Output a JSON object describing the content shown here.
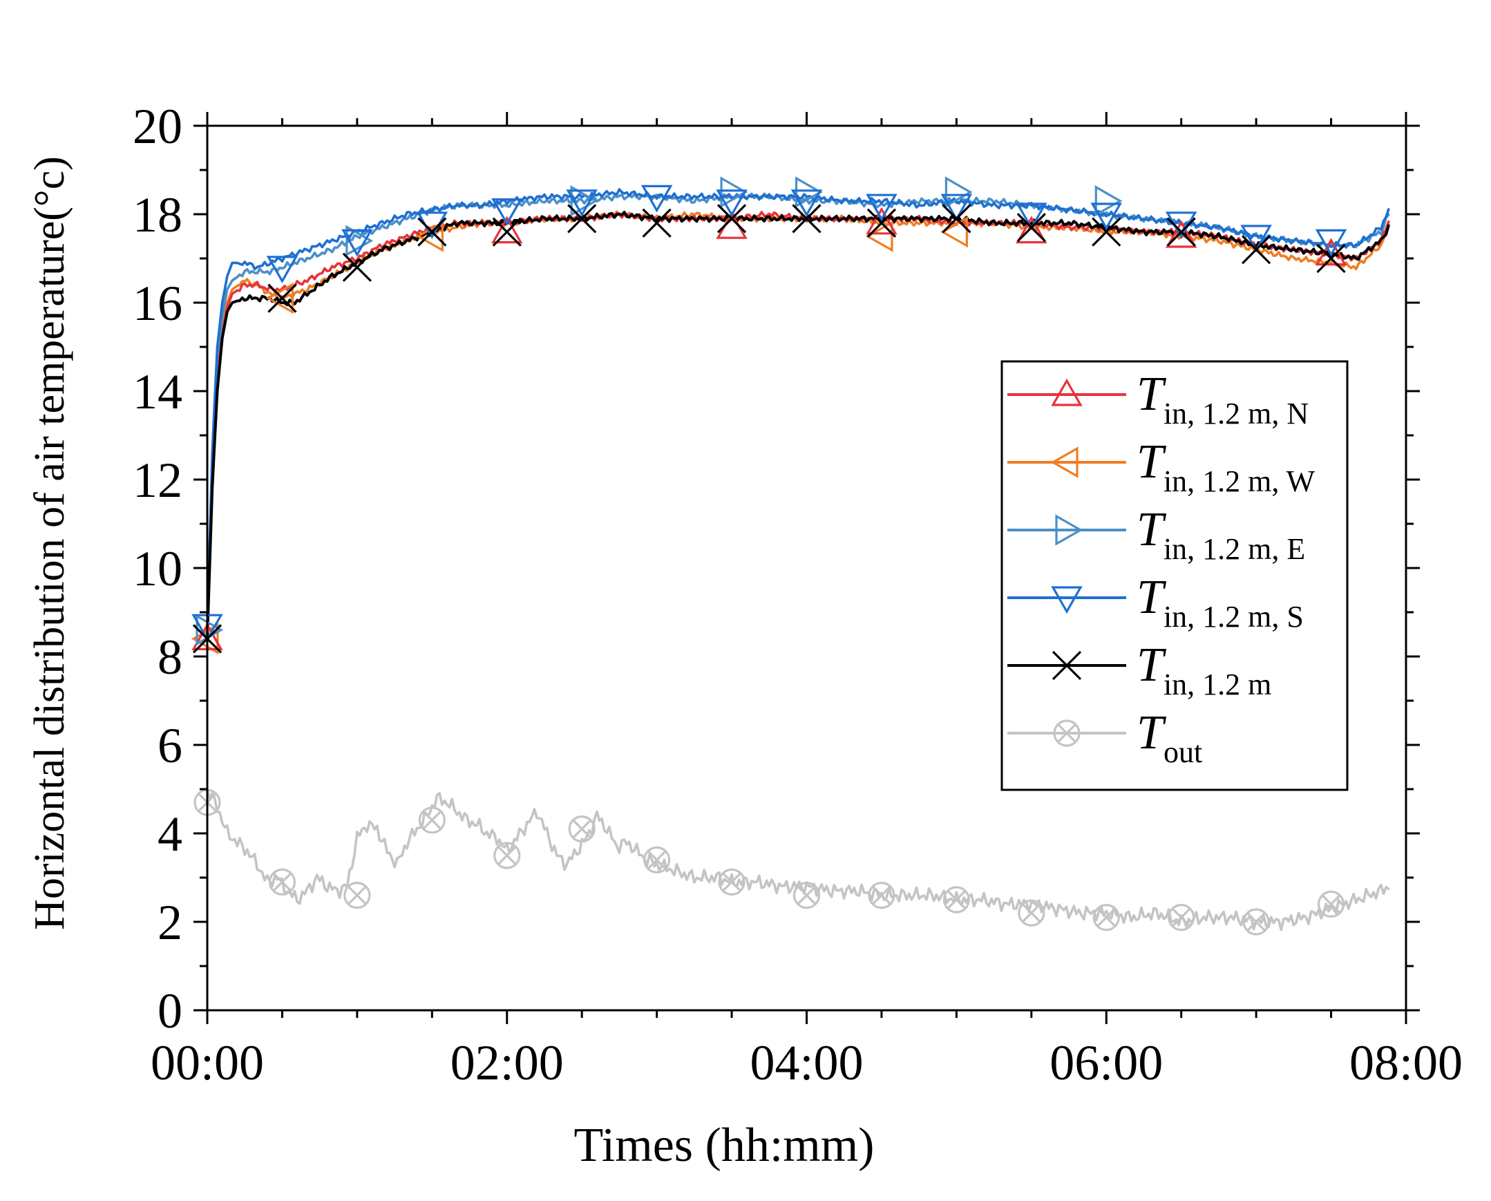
{
  "chart_data": {
    "type": "line",
    "xlabel": "Times (hh:mm)",
    "ylabel": "Horizontal distribution of air temperature(°c)",
    "xlim": [
      0,
      480
    ],
    "ylim": [
      0,
      20
    ],
    "xticks": [
      {
        "value": 0,
        "label": "00:00"
      },
      {
        "value": 120,
        "label": "02:00"
      },
      {
        "value": 240,
        "label": "04:00"
      },
      {
        "value": 360,
        "label": "06:00"
      },
      {
        "value": 480,
        "label": "08:00"
      }
    ],
    "yticks": [
      {
        "value": 0,
        "label": "0"
      },
      {
        "value": 2,
        "label": "2"
      },
      {
        "value": 4,
        "label": "4"
      },
      {
        "value": 6,
        "label": "6"
      },
      {
        "value": 8,
        "label": "8"
      },
      {
        "value": 10,
        "label": "10"
      },
      {
        "value": 12,
        "label": "12"
      },
      {
        "value": 14,
        "label": "14"
      },
      {
        "value": 16,
        "label": "16"
      },
      {
        "value": 18,
        "label": "18"
      },
      {
        "value": 20,
        "label": "20"
      }
    ],
    "minor_x_step": 30,
    "minor_y_step": 1,
    "legend_position": "right-center",
    "series": [
      {
        "name": "T_in, 1.2 m, N",
        "label_main": "T",
        "label_sub": "in, 1.2 m, N",
        "color": "#e8323c",
        "marker": "triangle-up",
        "x": [
          0,
          2,
          4,
          6,
          8,
          10,
          15,
          20,
          25,
          30,
          40,
          50,
          60,
          70,
          80,
          90,
          100,
          110,
          120,
          135,
          150,
          165,
          180,
          195,
          210,
          225,
          240,
          255,
          270,
          285,
          300,
          315,
          330,
          345,
          360,
          375,
          390,
          405,
          420,
          435,
          450,
          460,
          470,
          473
        ],
        "y": [
          8.5,
          12.0,
          14.2,
          15.3,
          15.9,
          16.2,
          16.4,
          16.4,
          16.3,
          16.3,
          16.5,
          16.8,
          17.0,
          17.3,
          17.5,
          17.7,
          17.8,
          17.8,
          17.8,
          17.9,
          17.9,
          18.0,
          17.9,
          17.9,
          17.9,
          18.0,
          17.9,
          17.9,
          17.9,
          17.9,
          17.8,
          17.8,
          17.8,
          17.7,
          17.7,
          17.6,
          17.6,
          17.5,
          17.3,
          17.2,
          17.1,
          17.0,
          17.4,
          17.8
        ],
        "marker_x": [
          0,
          120,
          210,
          270,
          330,
          390,
          450
        ],
        "marker_y": [
          8.4,
          17.6,
          17.7,
          17.8,
          17.6,
          17.5,
          17.1
        ]
      },
      {
        "name": "T_in, 1.2 m, W",
        "label_main": "T",
        "label_sub": "in, 1.2 m, W",
        "color": "#f07d22",
        "marker": "triangle-left",
        "x": [
          0,
          2,
          4,
          6,
          8,
          10,
          15,
          20,
          25,
          30,
          40,
          50,
          60,
          70,
          80,
          90,
          100,
          110,
          120,
          135,
          150,
          165,
          180,
          195,
          210,
          225,
          240,
          255,
          270,
          285,
          300,
          315,
          330,
          345,
          360,
          375,
          390,
          405,
          420,
          435,
          450,
          460,
          470,
          473
        ],
        "y": [
          8.4,
          12.0,
          14.4,
          15.4,
          16.0,
          16.3,
          16.5,
          16.4,
          16.2,
          16.1,
          16.3,
          16.6,
          16.9,
          17.2,
          17.4,
          17.6,
          17.7,
          17.8,
          17.8,
          17.9,
          17.9,
          18.0,
          17.9,
          18.0,
          17.9,
          17.9,
          17.9,
          17.9,
          17.8,
          17.8,
          17.8,
          17.8,
          17.7,
          17.7,
          17.6,
          17.6,
          17.5,
          17.4,
          17.2,
          17.0,
          16.9,
          16.8,
          17.3,
          17.8
        ],
        "marker_x": [
          0,
          30,
          90,
          270,
          300
        ],
        "marker_y": [
          8.4,
          16.1,
          17.5,
          17.5,
          17.6
        ]
      },
      {
        "name": "T_in, 1.2 m, E",
        "label_main": "T",
        "label_sub": "in, 1.2 m, E",
        "color": "#4a90c8",
        "marker": "triangle-right",
        "x": [
          0,
          2,
          4,
          6,
          8,
          10,
          15,
          20,
          25,
          30,
          40,
          50,
          60,
          70,
          80,
          90,
          100,
          110,
          120,
          135,
          150,
          165,
          180,
          195,
          210,
          225,
          240,
          255,
          270,
          285,
          300,
          315,
          330,
          345,
          360,
          375,
          390,
          405,
          420,
          435,
          450,
          460,
          470,
          473
        ],
        "y": [
          8.6,
          12.4,
          14.8,
          15.7,
          16.3,
          16.5,
          16.7,
          16.7,
          16.7,
          16.8,
          17.0,
          17.2,
          17.5,
          17.7,
          17.9,
          18.1,
          18.2,
          18.2,
          18.2,
          18.3,
          18.3,
          18.4,
          18.4,
          18.3,
          18.4,
          18.4,
          18.3,
          18.3,
          18.2,
          18.3,
          18.3,
          18.3,
          18.2,
          18.1,
          18.0,
          17.9,
          17.8,
          17.7,
          17.5,
          17.4,
          17.3,
          17.3,
          17.6,
          18.0
        ],
        "marker_x": [
          0,
          60,
          150,
          210,
          240,
          300,
          360
        ],
        "marker_y": [
          8.6,
          17.4,
          18.3,
          18.5,
          18.5,
          18.5,
          18.3
        ]
      },
      {
        "name": "T_in, 1.2 m, S",
        "label_main": "T",
        "label_sub": "in, 1.2 m, S",
        "color": "#1f6fd1",
        "marker": "triangle-down",
        "x": [
          0,
          2,
          4,
          6,
          8,
          10,
          15,
          20,
          25,
          30,
          40,
          50,
          60,
          70,
          80,
          90,
          100,
          110,
          120,
          135,
          150,
          165,
          180,
          195,
          210,
          225,
          240,
          255,
          270,
          285,
          300,
          315,
          330,
          345,
          360,
          375,
          390,
          405,
          420,
          435,
          450,
          460,
          470,
          473
        ],
        "y": [
          8.7,
          12.6,
          15.0,
          16.0,
          16.6,
          16.9,
          16.9,
          16.8,
          16.9,
          17.0,
          17.2,
          17.4,
          17.6,
          17.8,
          18.0,
          18.1,
          18.2,
          18.2,
          18.3,
          18.4,
          18.4,
          18.5,
          18.4,
          18.4,
          18.4,
          18.4,
          18.4,
          18.3,
          18.3,
          18.2,
          18.3,
          18.2,
          18.2,
          18.1,
          18.0,
          17.9,
          17.8,
          17.7,
          17.5,
          17.4,
          17.3,
          17.3,
          17.7,
          18.1
        ],
        "marker_x": [
          0,
          30,
          60,
          90,
          120,
          150,
          180,
          210,
          240,
          270,
          300,
          330,
          360,
          390,
          420,
          450
        ],
        "marker_y": [
          8.7,
          16.8,
          17.4,
          17.8,
          18.1,
          18.3,
          18.4,
          18.3,
          18.3,
          18.2,
          18.2,
          18.0,
          18.0,
          17.8,
          17.5,
          17.4
        ]
      },
      {
        "name": "T_in, 1.2 m",
        "label_main": "T",
        "label_sub": "in, 1.2 m",
        "color": "#000000",
        "marker": "x",
        "x": [
          0,
          2,
          4,
          6,
          8,
          10,
          15,
          20,
          25,
          30,
          35,
          40,
          50,
          60,
          70,
          80,
          90,
          100,
          110,
          120,
          135,
          150,
          165,
          180,
          195,
          210,
          225,
          240,
          255,
          270,
          285,
          300,
          315,
          330,
          345,
          360,
          375,
          390,
          405,
          420,
          435,
          450,
          460,
          470,
          473
        ],
        "y": [
          8.4,
          11.8,
          14.0,
          15.2,
          15.8,
          16.0,
          16.1,
          16.1,
          16.1,
          16.0,
          16.0,
          16.2,
          16.6,
          16.9,
          17.2,
          17.4,
          17.6,
          17.8,
          17.8,
          17.8,
          17.9,
          17.9,
          18.0,
          17.9,
          17.9,
          17.9,
          17.9,
          17.9,
          17.9,
          17.9,
          17.9,
          17.9,
          17.8,
          17.8,
          17.8,
          17.7,
          17.6,
          17.6,
          17.5,
          17.3,
          17.2,
          17.1,
          17.0,
          17.4,
          17.7
        ],
        "marker_x": [
          0,
          30,
          60,
          90,
          120,
          150,
          180,
          210,
          240,
          270,
          300,
          330,
          360,
          390,
          420,
          450
        ],
        "marker_y": [
          8.4,
          16.1,
          16.8,
          17.6,
          17.6,
          17.9,
          17.8,
          17.9,
          17.9,
          17.8,
          17.9,
          17.7,
          17.6,
          17.6,
          17.2,
          17.0
        ]
      },
      {
        "name": "T_out",
        "label_main": "T",
        "label_sub": "out",
        "color": "#c4c4c4",
        "marker": "circle-x",
        "x": [
          0,
          4,
          8,
          12,
          16,
          20,
          24,
          28,
          32,
          36,
          40,
          44,
          48,
          52,
          56,
          60,
          64,
          68,
          72,
          76,
          80,
          84,
          88,
          92,
          96,
          100,
          104,
          108,
          112,
          116,
          120,
          124,
          128,
          132,
          136,
          140,
          144,
          148,
          152,
          156,
          160,
          164,
          168,
          172,
          176,
          180,
          185,
          190,
          195,
          200,
          205,
          210,
          220,
          230,
          240,
          250,
          260,
          270,
          280,
          290,
          300,
          310,
          320,
          330,
          340,
          350,
          360,
          370,
          380,
          390,
          400,
          410,
          420,
          430,
          440,
          450,
          460,
          470,
          473
        ],
        "y": [
          5.0,
          4.6,
          4.0,
          3.8,
          3.6,
          3.3,
          2.9,
          3.0,
          2.7,
          2.5,
          2.7,
          3.0,
          2.8,
          2.7,
          2.8,
          3.9,
          4.2,
          4.1,
          3.6,
          3.3,
          3.8,
          4.1,
          4.4,
          4.8,
          4.7,
          4.5,
          4.3,
          4.2,
          4.0,
          3.9,
          3.6,
          3.9,
          4.2,
          4.5,
          4.0,
          3.5,
          3.3,
          3.6,
          3.9,
          4.4,
          4.1,
          3.7,
          3.8,
          3.6,
          3.4,
          3.3,
          3.2,
          3.1,
          3.0,
          3.0,
          3.0,
          2.9,
          2.9,
          2.8,
          2.8,
          2.7,
          2.7,
          2.6,
          2.6,
          2.6,
          2.5,
          2.5,
          2.4,
          2.4,
          2.3,
          2.2,
          2.2,
          2.1,
          2.2,
          2.0,
          2.1,
          2.1,
          2.0,
          2.0,
          2.1,
          2.3,
          2.5,
          2.7,
          2.8
        ],
        "marker_x": [
          0,
          30,
          60,
          90,
          120,
          150,
          180,
          210,
          240,
          270,
          300,
          330,
          360,
          390,
          420,
          450
        ],
        "marker_y": [
          4.7,
          2.9,
          2.6,
          4.3,
          3.5,
          4.1,
          3.4,
          2.9,
          2.6,
          2.6,
          2.5,
          2.2,
          2.1,
          2.1,
          2.0,
          2.4
        ]
      }
    ]
  }
}
